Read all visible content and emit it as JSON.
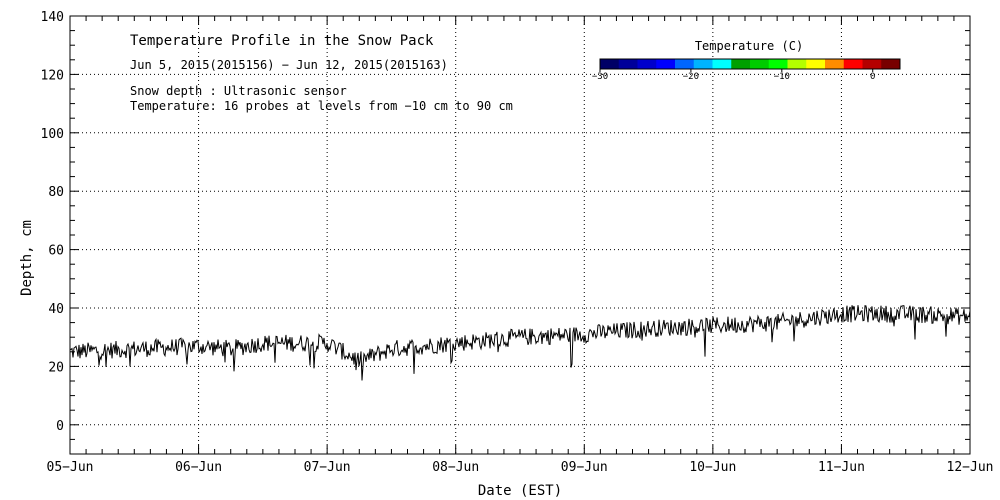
{
  "chart_data": {
    "type": "line",
    "title": "Temperature Profile in the Snow Pack",
    "subtitle": "Jun  5, 2015(2015156) − Jun 12, 2015(2015163)",
    "annotations": [
      "Snow depth : Ultrasonic sensor",
      "Temperature: 16 probes at levels from −10 cm to 90 cm"
    ],
    "xlabel": "Date (EST)",
    "ylabel": "Depth, cm",
    "x_tick_labels": [
      "05−Jun",
      "06−Jun",
      "07−Jun",
      "08−Jun",
      "09−Jun",
      "10−Jun",
      "11−Jun",
      "12−Jun"
    ],
    "xlim": [
      "2015-06-05",
      "2015-06-12"
    ],
    "ylim": [
      -10,
      140
    ],
    "y_ticks": [
      0,
      20,
      40,
      60,
      80,
      100,
      120,
      140
    ],
    "grid": "dotted",
    "series": [
      {
        "x": [
          "2015-06-05",
          "2015-06-05T12:00",
          "2015-06-06",
          "2015-06-06T06:00",
          "2015-06-06T12:00",
          "2015-06-07",
          "2015-06-07T06:00",
          "2015-06-07T12:00",
          "2015-06-08",
          "2015-06-08T12:00",
          "2015-06-09",
          "2015-06-09T12:00",
          "2015-06-10",
          "2015-06-10T12:00",
          "2015-06-11",
          "2015-06-11T12:00",
          "2015-06-12"
        ],
        "values": [
          25,
          26,
          27,
          26,
          28,
          28,
          22,
          26,
          28,
          30,
          31,
          33,
          34,
          35,
          38,
          38,
          37
        ],
        "color": "#000000"
      }
    ],
    "colorbar": {
      "title": "Temperature (C)",
      "tick_labels": [
        "−30",
        "−20",
        "−10",
        "0"
      ],
      "range": [
        -30,
        3
      ],
      "colors": [
        "#000066",
        "#00009a",
        "#0000cc",
        "#0000ff",
        "#0066ff",
        "#00b4ff",
        "#00ffff",
        "#00a000",
        "#00cc00",
        "#00ff00",
        "#b4ff00",
        "#ffff00",
        "#ff8c00",
        "#ff0000",
        "#b40000",
        "#780000"
      ]
    }
  }
}
